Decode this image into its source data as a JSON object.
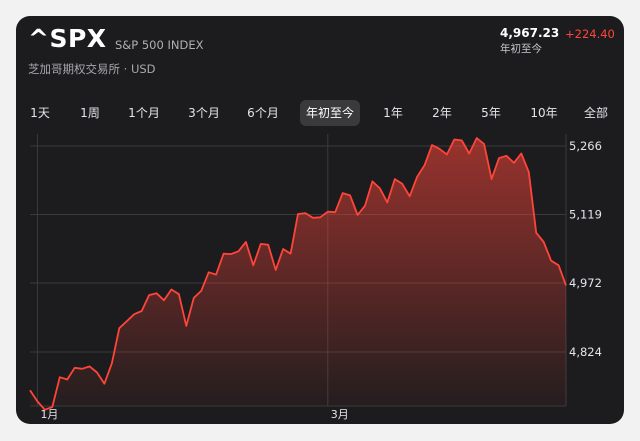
{
  "header": {
    "symbol": "^SPX",
    "index_name": "S&P 500 INDEX",
    "exchange": "芝加哥期权交易所 · USD",
    "price": "4,967.23",
    "change": "+224.40",
    "price_label": "年初至今"
  },
  "tabs": [
    {
      "label": "1天"
    },
    {
      "label": "1周"
    },
    {
      "label": "1个月"
    },
    {
      "label": "3个月"
    },
    {
      "label": "6个月"
    },
    {
      "label": "年初至今",
      "active": true
    },
    {
      "label": "1年"
    },
    {
      "label": "2年"
    },
    {
      "label": "5年"
    },
    {
      "label": "10年"
    },
    {
      "label": "全部"
    }
  ],
  "colors": {
    "line": "#ff453a",
    "accent_red": "#ff453a",
    "background": "#1c1c1e"
  },
  "chart_data": {
    "type": "area",
    "ylim": [
      4700,
      5320
    ],
    "y_ticks": [
      5266,
      5119,
      4972,
      4824
    ],
    "y_tick_labels": [
      "5,266",
      "5,119",
      "4,972",
      "4,824"
    ],
    "x_tick_labels": [
      {
        "label": "1月",
        "index": 1
      },
      {
        "label": "3月",
        "index": 40
      }
    ],
    "grid": true,
    "series": [
      {
        "values": [
          4742,
          4718,
          4700,
          4706,
          4770,
          4765,
          4790,
          4788,
          4793,
          4780,
          4756,
          4800,
          4875,
          4890,
          4905,
          4912,
          4946,
          4950,
          4935,
          4958,
          4948,
          4880,
          4940,
          4955,
          4995,
          4990,
          5035,
          5034,
          5040,
          5060,
          5010,
          5056,
          5054,
          5000,
          5045,
          5035,
          5120,
          5122,
          5112,
          5113,
          5125,
          5124,
          5165,
          5160,
          5118,
          5138,
          5190,
          5175,
          5145,
          5195,
          5185,
          5158,
          5200,
          5225,
          5268,
          5260,
          5248,
          5280,
          5278,
          5250,
          5283,
          5270,
          5195,
          5240,
          5245,
          5230,
          5250,
          5210,
          5080,
          5060,
          5020,
          5010,
          4967
        ]
      }
    ]
  }
}
